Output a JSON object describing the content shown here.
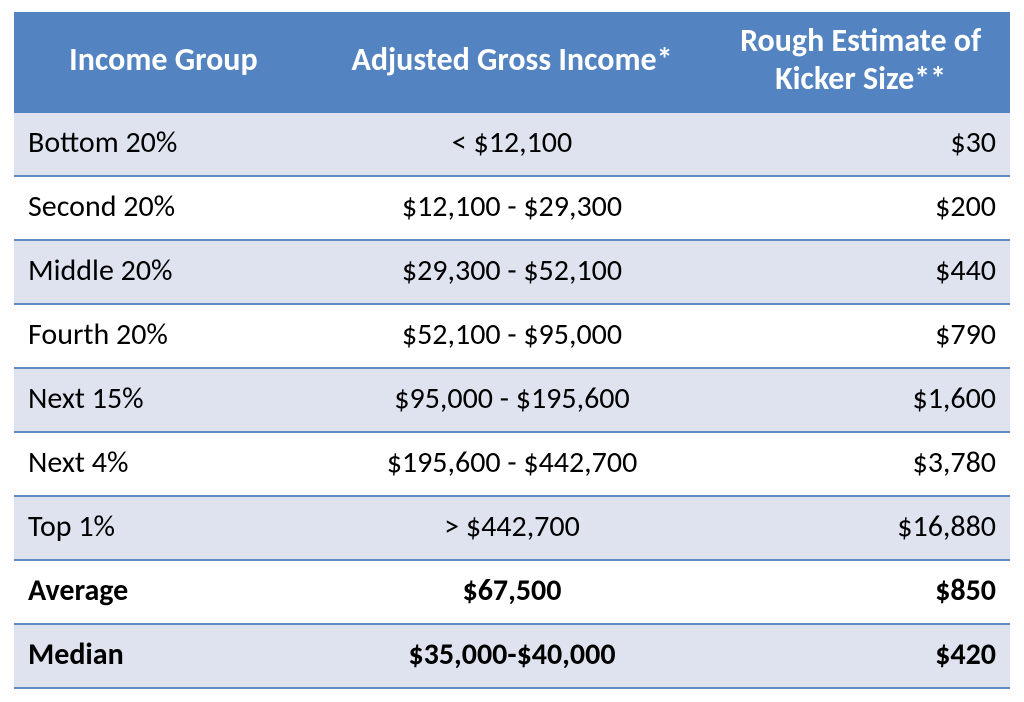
{
  "table": {
    "columns": [
      "Income Group",
      "Adjusted Gross Income*",
      "Rough Estimate of Kicker Size**"
    ],
    "header_bg": "#5383c0",
    "header_text_color": "#ffffff",
    "row_alt_bg": "#dee3ef",
    "row_bg": "#ffffff",
    "border_color": "#5e8bc4",
    "header_fontsize_pt": 24,
    "body_fontsize_pt": 22,
    "col_align": [
      "left",
      "center",
      "right"
    ],
    "col_widths_pct": [
      30,
      40,
      30
    ],
    "rows": [
      {
        "group": "Bottom 20%",
        "agi": "< $12,100",
        "kicker": "$30",
        "alt": true,
        "bold": false
      },
      {
        "group": "Second 20%",
        "agi": "$12,100 - $29,300",
        "kicker": "$200",
        "alt": false,
        "bold": false
      },
      {
        "group": "Middle 20%",
        "agi": "$29,300 - $52,100",
        "kicker": "$440",
        "alt": true,
        "bold": false
      },
      {
        "group": "Fourth 20%",
        "agi": "$52,100 - $95,000",
        "kicker": "$790",
        "alt": false,
        "bold": false
      },
      {
        "group": "Next 15%",
        "agi": "$95,000 - $195,600",
        "kicker": "$1,600",
        "alt": true,
        "bold": false
      },
      {
        "group": "Next 4%",
        "agi": "$195,600 - $442,700",
        "kicker": "$3,780",
        "alt": false,
        "bold": false
      },
      {
        "group": "Top 1%",
        "agi": "> $442,700",
        "kicker": "$16,880",
        "alt": true,
        "bold": false
      },
      {
        "group": "Average",
        "agi": "$67,500",
        "kicker": "$850",
        "alt": false,
        "bold": true
      },
      {
        "group": "Median",
        "agi": "$35,000-$40,000",
        "kicker": "$420",
        "alt": true,
        "bold": true
      }
    ]
  }
}
